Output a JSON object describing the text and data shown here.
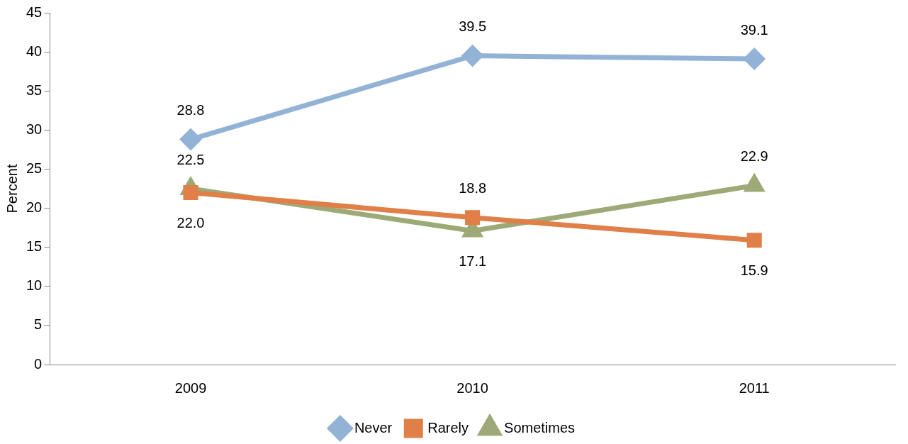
{
  "chart_data": {
    "type": "line",
    "ylabel": "Percent",
    "categories": [
      "2009",
      "2010",
      "2011"
    ],
    "series": [
      {
        "name": "Never",
        "color": "#93b3d6",
        "marker": "diamond",
        "values": [
          28.8,
          39.5,
          39.1
        ],
        "value_labels": [
          "28.8",
          "39.5",
          "39.1"
        ]
      },
      {
        "name": "Rarely",
        "color": "#e07f48",
        "marker": "square",
        "values": [
          22.0,
          18.8,
          15.9
        ],
        "value_labels": [
          "22.0",
          "18.8",
          "15.9"
        ]
      },
      {
        "name": "Sometimes",
        "color": "#9daa78",
        "marker": "triangle",
        "values": [
          22.5,
          17.1,
          22.9
        ],
        "value_labels": [
          "22.5",
          "17.1",
          "22.9"
        ]
      }
    ],
    "ylim": [
      0,
      45
    ],
    "yticks": [
      0,
      5,
      10,
      15,
      20,
      25,
      30,
      35,
      40,
      45
    ],
    "grid": false,
    "legend": "bottom"
  }
}
